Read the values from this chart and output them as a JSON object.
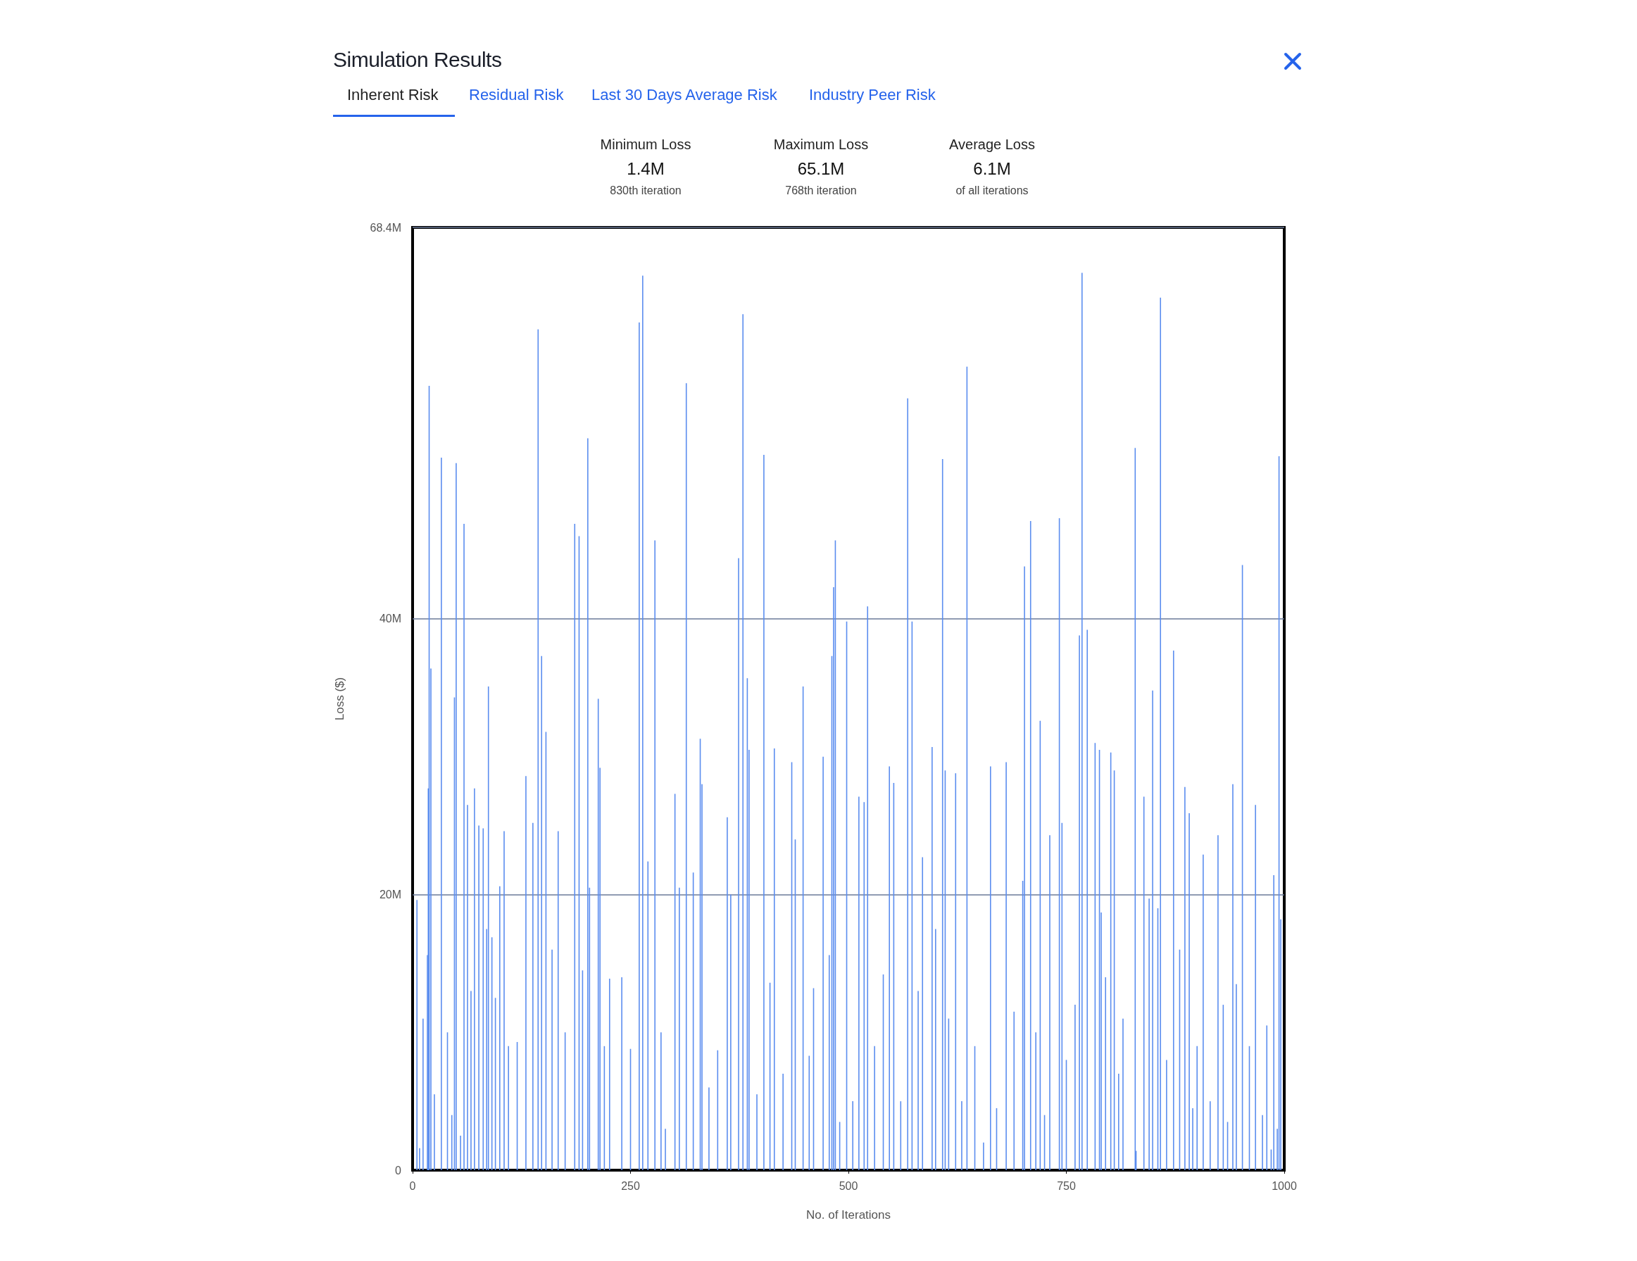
{
  "chart_data": {
    "type": "bar",
    "title": "Simulation Results",
    "annotations": [
      "Inherent Risk",
      "Residual Risk",
      "Last 30 Days Average Risk",
      "Industry Peer Risk",
      "Minimum Loss",
      "1.4M",
      "830th iteration",
      "Maximum Loss",
      "65.1M",
      "768th iteration",
      "Average Loss",
      "6.1M",
      "of all iterations"
    ],
    "xlabel": "No. of Iterations",
    "ylabel": "Loss ($)",
    "x": [
      5,
      8,
      12,
      17,
      18,
      19,
      21,
      25,
      33,
      40,
      45,
      48,
      50,
      55,
      59,
      63,
      67,
      71,
      76,
      81,
      85,
      87,
      91,
      95,
      100,
      105,
      110,
      120,
      130,
      138,
      144,
      148,
      153,
      160,
      167,
      175,
      186,
      191,
      195,
      201,
      203,
      213,
      215,
      220,
      226,
      240,
      250,
      260,
      264,
      270,
      278,
      285,
      290,
      301,
      306,
      314,
      322,
      330,
      332,
      340,
      350,
      361,
      365,
      374,
      379,
      384,
      386,
      395,
      403,
      410,
      415,
      425,
      435,
      439,
      448,
      455,
      460,
      471,
      478,
      481,
      483,
      485,
      490,
      498,
      505,
      512,
      518,
      522,
      530,
      540,
      547,
      552,
      560,
      568,
      573,
      580,
      585,
      596,
      600,
      608,
      611,
      615,
      623,
      630,
      636,
      645,
      655,
      663,
      670,
      681,
      690,
      700,
      702,
      709,
      715,
      720,
      725,
      731,
      742,
      745,
      750,
      760,
      765,
      768,
      774,
      783,
      788,
      790,
      795,
      801,
      805,
      810,
      815,
      829,
      830,
      839,
      845,
      849,
      855,
      858,
      865,
      873,
      880,
      886,
      891,
      895,
      900,
      907,
      915,
      924,
      930,
      935,
      941,
      945,
      952,
      960,
      967,
      975,
      980,
      985,
      988,
      992,
      994,
      996
    ],
    "values": [
      19.6,
      1.6,
      11.0,
      15.6,
      27.7,
      56.9,
      36.4,
      5.5,
      51.7,
      10.0,
      4.0,
      34.3,
      51.3,
      2.5,
      46.9,
      26.5,
      13.0,
      27.7,
      25.0,
      24.8,
      17.5,
      35.1,
      16.9,
      12.5,
      20.6,
      24.6,
      9.0,
      9.3,
      28.6,
      25.2,
      61.0,
      37.3,
      31.8,
      16.0,
      24.6,
      10.0,
      46.9,
      46.0,
      14.5,
      53.1,
      20.5,
      34.2,
      29.2,
      9.0,
      13.9,
      14.0,
      8.8,
      61.5,
      64.9,
      22.4,
      45.7,
      10.0,
      3.0,
      27.3,
      20.5,
      57.1,
      21.6,
      31.3,
      28.0,
      6.0,
      8.7,
      25.6,
      20.0,
      44.4,
      62.1,
      35.7,
      30.5,
      5.5,
      51.9,
      13.6,
      30.6,
      7.0,
      29.6,
      24.0,
      35.1,
      8.3,
      13.2,
      30.0,
      15.6,
      37.3,
      42.3,
      45.7,
      3.5,
      39.8,
      5.0,
      27.1,
      26.7,
      40.9,
      9.0,
      14.2,
      29.3,
      28.1,
      5.0,
      56.0,
      39.8,
      13.0,
      22.7,
      30.7,
      17.5,
      51.6,
      29.0,
      11.0,
      28.8,
      5.0,
      58.3,
      9.0,
      2.0,
      29.3,
      4.5,
      29.6,
      11.5,
      21.0,
      43.8,
      47.1,
      10.0,
      32.6,
      4.0,
      24.3,
      47.3,
      25.2,
      8.0,
      12.0,
      38.8,
      65.1,
      39.2,
      31.0,
      30.5,
      18.7,
      14.0,
      30.3,
      29.0,
      7.0,
      11.0,
      52.4,
      1.4,
      27.1,
      19.7,
      34.8,
      19.0,
      63.3,
      8.0,
      37.7,
      16.0,
      27.8,
      25.9,
      4.5,
      9.0,
      22.9,
      5.0,
      24.3,
      12.0,
      3.5,
      28.0,
      13.5,
      43.9,
      9.0,
      26.5,
      4.0,
      10.5,
      1.5,
      21.4,
      3.0,
      51.8,
      18.2
    ],
    "color": "#5b8def",
    "xlim": [
      0,
      1000
    ],
    "xticks": [
      0,
      250,
      500,
      750,
      1000
    ],
    "ylim": [
      0,
      68.4
    ],
    "yticks": [
      0,
      {
        "value": 20,
        "label": "20M"
      },
      {
        "value": 40,
        "label": "40M"
      },
      {
        "value": 68.4,
        "label": "68.4M"
      }
    ],
    "grid": "y"
  }
}
